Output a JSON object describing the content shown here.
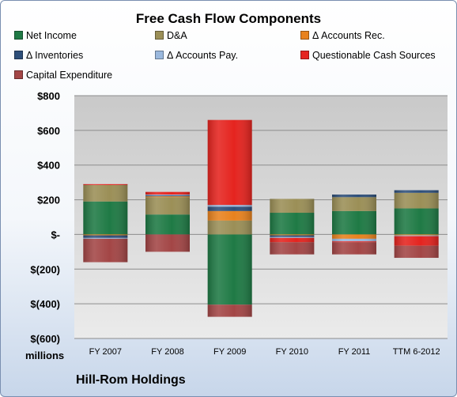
{
  "company": "Hill-Rom Holdings",
  "units_label": "millions",
  "colors": {
    "Net Income": "#1f7a45",
    "D&A": "#9b8f57",
    "Δ Accounts Rec.": "#e8821e",
    "Δ Inventories": "#2e4f7a",
    "Δ Accounts Pay.": "#9ab8dd",
    "Questionable Cash Sources": "#e5241f",
    "Capital Expenditure": "#a34646"
  },
  "chart_data": {
    "type": "bar",
    "stacked": true,
    "title": "Free Cash Flow Components",
    "xlabel": "",
    "ylabel": "",
    "ylim": [
      -600,
      800
    ],
    "y_ticks": [
      800,
      600,
      400,
      200,
      0,
      -200,
      -400,
      -600
    ],
    "y_tick_labels": [
      "$800",
      "$600",
      "$400",
      "$200",
      "$-",
      "$(200)",
      "$(400)",
      "$(600)"
    ],
    "grid": true,
    "legend": "top",
    "categories": [
      "FY 2007",
      "FY 2008",
      "FY 2009",
      "FY 2010",
      "FY 2011",
      "TTM 6-2012"
    ],
    "series": [
      {
        "name": "Net Income",
        "values": [
          190,
          115,
          -405,
          125,
          135,
          150
        ]
      },
      {
        "name": "D&A",
        "values": [
          95,
          100,
          80,
          80,
          80,
          90
        ]
      },
      {
        "name": "Δ Accounts Rec.",
        "values": [
          -5,
          5,
          55,
          -5,
          -25,
          -5
        ]
      },
      {
        "name": "Δ Inventories",
        "values": [
          -15,
          5,
          25,
          -10,
          15,
          15
        ]
      },
      {
        "name": "Δ Accounts Pay.",
        "values": [
          -5,
          5,
          10,
          -5,
          -15,
          -5
        ]
      },
      {
        "name": "Questionable Cash Sources",
        "values": [
          5,
          15,
          490,
          -25,
          -5,
          -55
        ]
      },
      {
        "name": "Capital Expenditure",
        "values": [
          -135,
          -100,
          -70,
          -70,
          -70,
          -70
        ]
      }
    ]
  }
}
